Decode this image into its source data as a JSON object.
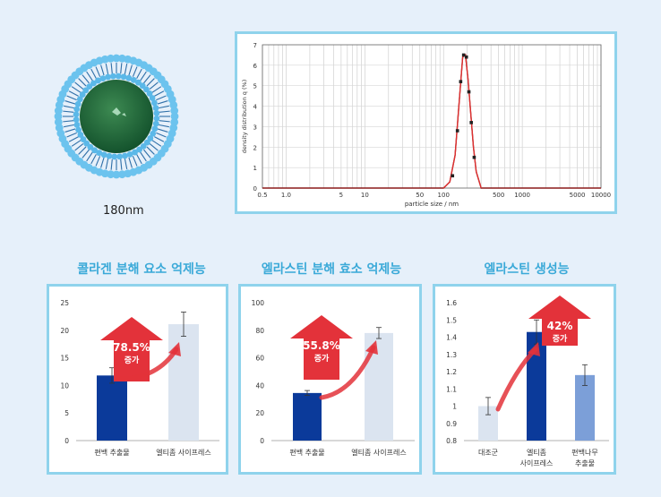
{
  "liposome": {
    "label": "180nm"
  },
  "chart_data": [
    {
      "type": "line",
      "xlabel": "particle size / nm",
      "ylabel": "density distribution q (%)",
      "x_ticks": [
        "0.5",
        "1.0",
        "5",
        "10",
        "50",
        "100",
        "500",
        "1000",
        "5000",
        "10000"
      ],
      "y_ticks": [
        "0",
        "1",
        "2",
        "3",
        "4",
        "5",
        "6",
        "7"
      ],
      "xlim": [
        0.5,
        10000
      ],
      "ylim": [
        0,
        7
      ],
      "x_scale": "log",
      "series": [
        {
          "x": [
            0.5,
            100,
            120,
            140,
            160,
            175,
            190,
            205,
            220,
            240,
            260,
            300,
            10000
          ],
          "values": [
            0,
            0,
            0.3,
            1.6,
            4.5,
            6.4,
            6.5,
            5.3,
            3.8,
            2.0,
            0.8,
            0,
            0
          ]
        }
      ],
      "markers": {
        "x": [
          130,
          150,
          165,
          180,
          195,
          210,
          225,
          245
        ],
        "values": [
          0.6,
          2.8,
          5.2,
          6.5,
          6.4,
          4.7,
          3.2,
          1.5
        ]
      },
      "color": "#e03030"
    },
    {
      "type": "bar",
      "title": "콜라겐 분해 요소 억제능",
      "categories": [
        "편백 추출물",
        "엘티좀 사이프레스"
      ],
      "values": [
        11.8,
        21.1
      ],
      "errors": [
        1.4,
        2.2
      ],
      "ylim": [
        0,
        25
      ],
      "y_ticks": [
        "0",
        "5",
        "10",
        "15",
        "20",
        "25"
      ],
      "annotation": {
        "value": "78.5%",
        "text": "증가"
      }
    },
    {
      "type": "bar",
      "title": "엘라스틴 분해 효소 억제능",
      "categories": [
        "편백 추출물",
        "엘티좀 사이프레스"
      ],
      "values": [
        34.5,
        78.0
      ],
      "errors": [
        1.8,
        4.0
      ],
      "ylim": [
        0,
        100
      ],
      "y_ticks": [
        "0",
        "20",
        "40",
        "60",
        "80",
        "100"
      ],
      "annotation": {
        "value": "55.8%",
        "text": "증가"
      }
    },
    {
      "type": "bar",
      "title": "엘라스틴 생성능",
      "categories": [
        "대조군",
        "엘티좀\n사이프레스",
        "편백나무\n추출물"
      ],
      "values": [
        1.0,
        1.43,
        1.18
      ],
      "errors": [
        0.05,
        0.07,
        0.06
      ],
      "ylim": [
        0.8,
        1.6
      ],
      "y_ticks": [
        "0.8",
        "0.9",
        "1",
        "1.1",
        "1.2",
        "1.3",
        "1.4",
        "1.5",
        "1.6"
      ],
      "annotation": {
        "value": "42%",
        "text": "증가"
      }
    }
  ],
  "colors": {
    "dark_bar": "#0b3a9a",
    "light_bar": "#dbe4f0",
    "mid_bar": "#7c9fd8",
    "arrow": "#e3323a"
  }
}
